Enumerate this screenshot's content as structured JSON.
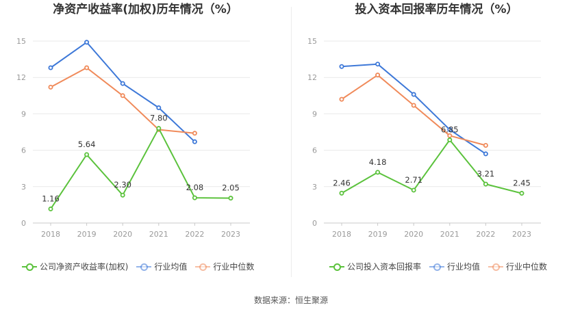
{
  "source_text": "数据来源：恒生聚源",
  "chart_data": [
    {
      "type": "line",
      "title": "净资产收益率(加权)历年情况（%）",
      "categories": [
        "2018",
        "2019",
        "2020",
        "2021",
        "2022",
        "2023"
      ],
      "ylim": [
        0,
        15
      ],
      "yticks": [
        0,
        3,
        6,
        9,
        12,
        15
      ],
      "grid": true,
      "legend_position": "bottom",
      "series": [
        {
          "name": "公司净资产收益率(加权)",
          "color": "#5bc23c",
          "values": [
            1.16,
            5.64,
            2.3,
            7.8,
            2.08,
            2.05
          ],
          "labels": [
            "1.16",
            "5.64",
            "2.30",
            "7.80",
            "2.08",
            "2.05"
          ]
        },
        {
          "name": "行业均值",
          "color": "#3d78d8",
          "values": [
            12.8,
            14.9,
            11.5,
            9.5,
            6.7,
            null
          ]
        },
        {
          "name": "行业中位数",
          "color": "#f08a5a",
          "values": [
            11.2,
            12.8,
            10.5,
            7.7,
            7.4,
            null
          ]
        }
      ]
    },
    {
      "type": "line",
      "title": "投入资本回报率历年情况（%）",
      "categories": [
        "2018",
        "2019",
        "2020",
        "2021",
        "2022",
        "2023"
      ],
      "ylim": [
        0,
        15
      ],
      "yticks": [
        0,
        3,
        6,
        9,
        12,
        15
      ],
      "grid": true,
      "legend_position": "bottom",
      "series": [
        {
          "name": "公司投入资本回报率",
          "color": "#5bc23c",
          "values": [
            2.46,
            4.18,
            2.71,
            6.85,
            3.21,
            2.45
          ],
          "labels": [
            "2.46",
            "4.18",
            "2.71",
            "6.85",
            "3.21",
            "2.45"
          ]
        },
        {
          "name": "行业均值",
          "color": "#3d78d8",
          "values": [
            12.9,
            13.1,
            10.6,
            7.7,
            5.7,
            null
          ]
        },
        {
          "name": "行业中位数",
          "color": "#f08a5a",
          "values": [
            10.2,
            12.2,
            9.7,
            7.2,
            6.4,
            null
          ]
        }
      ]
    }
  ]
}
